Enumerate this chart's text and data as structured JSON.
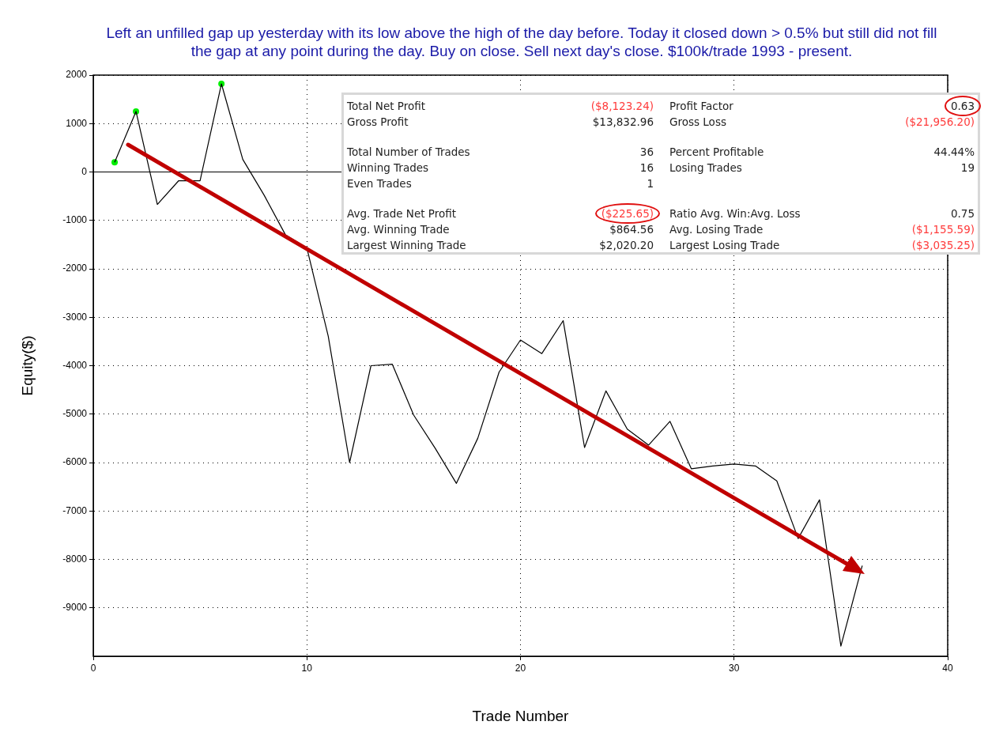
{
  "chart_data": {
    "type": "line",
    "title": "Left an unfilled gap up yesterday with its low above the high of the day before. Today it closed down > 0.5% but still did not fill the gap at any point during the day. Buy on close. Sell next day's close. $100k/trade 1993 - present.",
    "xlabel": "Trade Number",
    "ylabel": "Equity($)",
    "x": [
      1,
      2,
      3,
      4,
      5,
      6,
      7,
      8,
      9,
      10,
      11,
      12,
      13,
      14,
      15,
      16,
      17,
      18,
      19,
      20,
      21,
      22,
      23,
      24,
      25,
      26,
      27,
      28,
      29,
      30,
      31,
      32,
      33,
      34,
      35,
      36
    ],
    "series": [
      {
        "color": "#000000",
        "marker": "none",
        "values": [
          200,
          1250,
          -670,
          -180,
          -180,
          1820,
          260,
          -480,
          -1300,
          -1570,
          -3390,
          -6000,
          -4000,
          -3970,
          -5020,
          -5700,
          -6430,
          -5500,
          -4130,
          -3470,
          -3750,
          -3070,
          -5690,
          -4520,
          -5310,
          -5640,
          -5150,
          -6130,
          -6070,
          -6030,
          -6070,
          -6380,
          -7570,
          -6770,
          -9790,
          -8130
        ]
      },
      {
        "type": "scatter",
        "marker": "circle",
        "color": "#00ee00",
        "x": [
          1,
          2,
          6
        ],
        "values": [
          200,
          1250,
          1820
        ]
      }
    ],
    "xlim": [
      0,
      40
    ],
    "xticks": [
      0,
      10,
      20,
      30,
      40
    ],
    "ylim": [
      -10000,
      2000
    ],
    "yticks": [
      -9000,
      -8000,
      -7000,
      -6000,
      -5000,
      -4000,
      -3000,
      -2000,
      -1000,
      0,
      1000,
      2000
    ],
    "grid": true,
    "legend": false,
    "ref_lines": [
      {
        "axis": "y",
        "value": 0,
        "color": "#000000"
      }
    ],
    "annotations": [
      "Total Net Profit",
      "($8,123.24)",
      "Profit Factor",
      "0.63",
      "Gross Profit",
      "$13,832.96",
      "Gross Loss",
      "($21,956.20)",
      "Total Number of Trades",
      "36",
      "Percent Profitable",
      "44.44%",
      "Winning Trades",
      "16",
      "Losing Trades",
      "19",
      "Even Trades",
      "1",
      "Avg. Trade Net Profit",
      "($225.65)",
      "Ratio Avg. Win:Avg. Loss",
      "0.75",
      "Avg. Winning Trade",
      "$864.56",
      "Avg. Losing Trade",
      "($1,155.59)",
      "Largest Winning Trade",
      "$2,020.20",
      "Largest Losing Trade",
      "($3,035.25)"
    ]
  }
}
